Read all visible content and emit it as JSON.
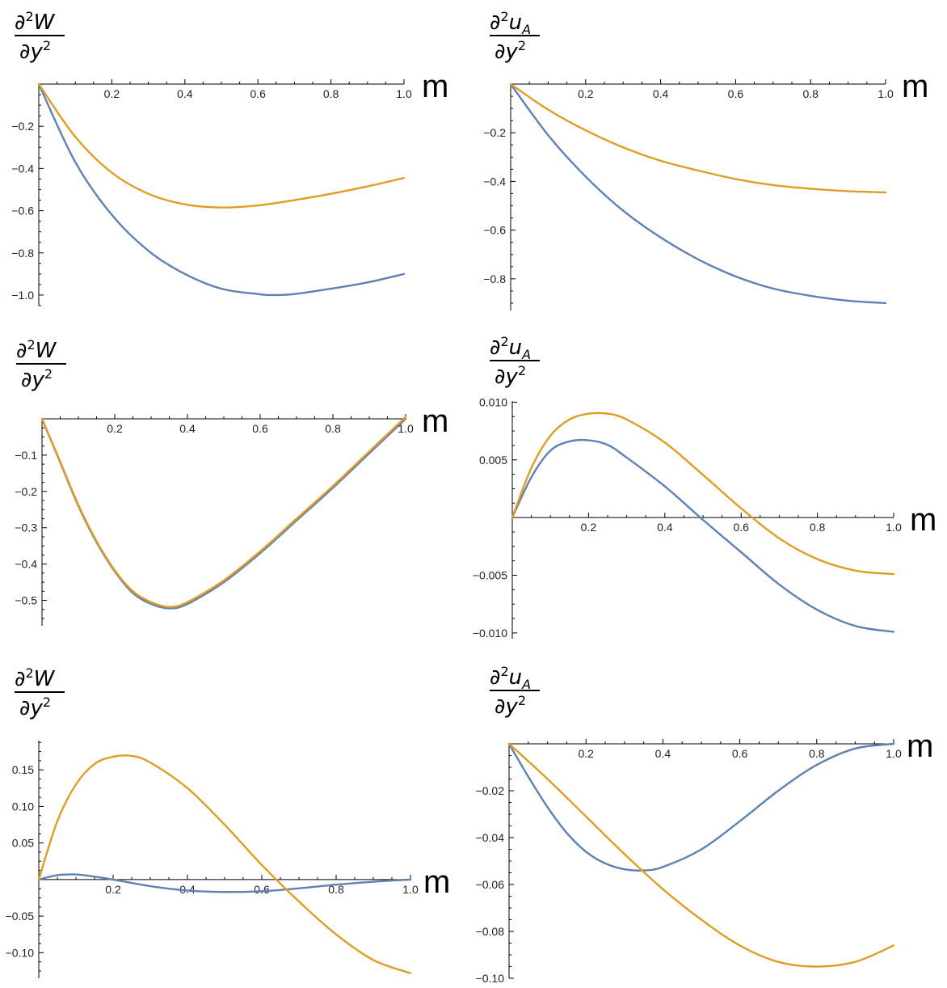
{
  "colors": {
    "series1": "#5e81b5",
    "series2": "#e19c24",
    "axis": "#000000"
  },
  "chart_data": [
    {
      "type": "line",
      "ylabel": {
        "numerator": "∂",
        "sup": "2",
        "var": "W",
        "sub": "",
        "denominator": "∂y",
        "den_sup": "2"
      },
      "xlabel": "m",
      "xlim": [
        0,
        1
      ],
      "ylim": [
        -1.05,
        0
      ],
      "x_ticks": [
        "0.2",
        "0.4",
        "0.6",
        "0.8",
        "1.0"
      ],
      "y_ticks": [
        "-0.2",
        "-0.4",
        "-0.6",
        "-0.8",
        "-1.0"
      ],
      "x_tick_values": [
        0.2,
        0.4,
        0.6,
        0.8,
        1.0
      ],
      "y_tick_values": [
        -0.2,
        -0.4,
        -0.6,
        -0.8,
        -1.0
      ],
      "series": [
        {
          "color": "series1",
          "x": [
            0,
            0.1,
            0.2,
            0.3,
            0.4,
            0.5,
            0.6,
            0.64,
            0.7,
            0.8,
            0.9,
            1.0
          ],
          "y": [
            0,
            -0.37,
            -0.62,
            -0.79,
            -0.9,
            -0.97,
            -0.995,
            -1.0,
            -0.995,
            -0.97,
            -0.94,
            -0.9
          ]
        },
        {
          "color": "series2",
          "x": [
            0,
            0.1,
            0.2,
            0.3,
            0.4,
            0.5,
            0.6,
            0.7,
            0.8,
            0.9,
            1.0
          ],
          "y": [
            0,
            -0.25,
            -0.42,
            -0.52,
            -0.57,
            -0.585,
            -0.575,
            -0.55,
            -0.52,
            -0.485,
            -0.445
          ]
        }
      ]
    },
    {
      "type": "line",
      "ylabel": {
        "numerator": "∂",
        "sup": "2",
        "var": "u",
        "sub": "A",
        "denominator": "∂y",
        "den_sup": "2"
      },
      "xlabel": "m",
      "xlim": [
        0,
        1
      ],
      "ylim": [
        -0.93,
        0
      ],
      "x_ticks": [
        "0.2",
        "0.4",
        "0.6",
        "0.8",
        "1.0"
      ],
      "y_ticks": [
        "-0.2",
        "-0.4",
        "-0.6",
        "-0.8"
      ],
      "x_tick_values": [
        0.2,
        0.4,
        0.6,
        0.8,
        1.0
      ],
      "y_tick_values": [
        -0.2,
        -0.4,
        -0.6,
        -0.8
      ],
      "series": [
        {
          "color": "series1",
          "x": [
            0,
            0.1,
            0.2,
            0.3,
            0.4,
            0.5,
            0.6,
            0.7,
            0.8,
            0.9,
            1.0
          ],
          "y": [
            0,
            -0.21,
            -0.38,
            -0.52,
            -0.63,
            -0.72,
            -0.79,
            -0.84,
            -0.87,
            -0.89,
            -0.9
          ]
        },
        {
          "color": "series2",
          "x": [
            0,
            0.1,
            0.2,
            0.3,
            0.4,
            0.5,
            0.6,
            0.7,
            0.8,
            0.9,
            1.0
          ],
          "y": [
            0,
            -0.105,
            -0.19,
            -0.26,
            -0.315,
            -0.355,
            -0.39,
            -0.415,
            -0.43,
            -0.44,
            -0.445
          ]
        }
      ]
    },
    {
      "type": "line",
      "ylabel": {
        "numerator": "∂",
        "sup": "2",
        "var": "W",
        "sub": "",
        "denominator": "∂y",
        "den_sup": "2"
      },
      "xlabel": "m",
      "xlim": [
        0,
        1
      ],
      "ylim": [
        -0.57,
        0
      ],
      "x_ticks": [
        "0.2",
        "0.4",
        "0.6",
        "0.8",
        "1.0"
      ],
      "y_ticks": [
        "-0.1",
        "-0.2",
        "-0.3",
        "-0.4",
        "-0.5"
      ],
      "x_tick_values": [
        0.2,
        0.4,
        0.6,
        0.8,
        1.0
      ],
      "y_tick_values": [
        -0.1,
        -0.2,
        -0.3,
        -0.4,
        -0.5
      ],
      "series": [
        {
          "color": "series1",
          "x": [
            0,
            0.05,
            0.1,
            0.15,
            0.2,
            0.25,
            0.3,
            0.35,
            0.4,
            0.5,
            0.6,
            0.7,
            0.8,
            0.9,
            1.0
          ],
          "y": [
            0,
            -0.12,
            -0.24,
            -0.34,
            -0.42,
            -0.48,
            -0.51,
            -0.522,
            -0.51,
            -0.45,
            -0.37,
            -0.28,
            -0.19,
            -0.095,
            0.0
          ]
        },
        {
          "color": "series2",
          "x": [
            0,
            0.05,
            0.1,
            0.15,
            0.2,
            0.25,
            0.3,
            0.35,
            0.4,
            0.5,
            0.6,
            0.7,
            0.8,
            0.9,
            1.0
          ],
          "y": [
            0,
            -0.118,
            -0.237,
            -0.337,
            -0.417,
            -0.475,
            -0.505,
            -0.518,
            -0.505,
            -0.445,
            -0.365,
            -0.275,
            -0.185,
            -0.09,
            0.005
          ]
        }
      ]
    },
    {
      "type": "line",
      "ylabel": {
        "numerator": "∂",
        "sup": "2",
        "var": "u",
        "sub": "A",
        "denominator": "∂y",
        "den_sup": "2"
      },
      "xlabel": "m",
      "xlim": [
        0,
        1
      ],
      "ylim": [
        -0.0105,
        0.0101
      ],
      "x_ticks": [
        "0.2",
        "0.4",
        "0.6",
        "0.8",
        "1.0"
      ],
      "y_ticks": [
        "0.010",
        "0.005",
        "-0.005",
        "-0.010"
      ],
      "x_tick_values": [
        0.2,
        0.4,
        0.6,
        0.8,
        1.0
      ],
      "y_tick_values": [
        0.01,
        0.005,
        -0.005,
        -0.01
      ],
      "series": [
        {
          "color": "series1",
          "x": [
            0,
            0.05,
            0.1,
            0.15,
            0.2,
            0.25,
            0.3,
            0.4,
            0.5,
            0.6,
            0.7,
            0.8,
            0.9,
            1.0
          ],
          "y": [
            0,
            0.0035,
            0.0058,
            0.0066,
            0.0067,
            0.0063,
            0.0052,
            0.0027,
            -0.0002,
            -0.003,
            -0.0058,
            -0.008,
            -0.0094,
            -0.0099
          ]
        },
        {
          "color": "series2",
          "x": [
            0,
            0.05,
            0.1,
            0.15,
            0.2,
            0.25,
            0.3,
            0.4,
            0.5,
            0.6,
            0.7,
            0.8,
            0.9,
            1.0
          ],
          "y": [
            0,
            0.0043,
            0.0071,
            0.0085,
            0.009,
            0.009,
            0.0085,
            0.0065,
            0.0037,
            0.0008,
            -0.0018,
            -0.0036,
            -0.0046,
            -0.0049
          ]
        }
      ]
    },
    {
      "type": "line",
      "ylabel": {
        "numerator": "∂",
        "sup": "2",
        "var": "W",
        "sub": "",
        "denominator": "∂y",
        "den_sup": "2"
      },
      "xlabel": "m",
      "xlim": [
        0,
        1
      ],
      "ylim": [
        -0.135,
        0.19
      ],
      "x_ticks": [
        "0.2",
        "0.4",
        "0.6",
        "0.8",
        "1.0"
      ],
      "y_ticks": [
        "0.15",
        "0.10",
        "0.05",
        "-0.05",
        "-0.10"
      ],
      "x_tick_values": [
        0.2,
        0.4,
        0.6,
        0.8,
        1.0
      ],
      "y_tick_values": [
        0.15,
        0.1,
        0.05,
        -0.05,
        -0.1
      ],
      "series": [
        {
          "color": "series1",
          "x": [
            0,
            0.05,
            0.1,
            0.15,
            0.2,
            0.3,
            0.4,
            0.5,
            0.6,
            0.7,
            0.8,
            0.9,
            1.0
          ],
          "y": [
            0,
            0.006,
            0.007,
            0.004,
            0.0,
            -0.009,
            -0.015,
            -0.017,
            -0.016,
            -0.012,
            -0.007,
            -0.003,
            0.0
          ]
        },
        {
          "color": "series2",
          "x": [
            0,
            0.05,
            0.1,
            0.15,
            0.2,
            0.25,
            0.3,
            0.4,
            0.5,
            0.6,
            0.7,
            0.8,
            0.9,
            1.0
          ],
          "y": [
            0,
            0.08,
            0.13,
            0.158,
            0.168,
            0.169,
            0.16,
            0.125,
            0.075,
            0.02,
            -0.03,
            -0.075,
            -0.11,
            -0.128
          ]
        }
      ]
    },
    {
      "type": "line",
      "ylabel": {
        "numerator": "∂",
        "sup": "2",
        "var": "u",
        "sub": "A",
        "denominator": "∂y",
        "den_sup": "2"
      },
      "xlabel": "m",
      "xlim": [
        0,
        1
      ],
      "ylim": [
        -0.1,
        0
      ],
      "x_ticks": [
        "0.2",
        "0.4",
        "0.6",
        "0.8",
        "1.0"
      ],
      "y_ticks": [
        "-0.02",
        "-0.04",
        "-0.06",
        "-0.08",
        "-0.10"
      ],
      "x_tick_values": [
        0.2,
        0.4,
        0.6,
        0.8,
        1.0
      ],
      "y_tick_values": [
        -0.02,
        -0.04,
        -0.06,
        -0.08,
        -0.1
      ],
      "series": [
        {
          "color": "series1",
          "x": [
            0,
            0.05,
            0.1,
            0.15,
            0.2,
            0.25,
            0.3,
            0.35,
            0.4,
            0.5,
            0.6,
            0.7,
            0.8,
            0.9,
            1.0
          ],
          "y": [
            0,
            -0.014,
            -0.027,
            -0.038,
            -0.046,
            -0.051,
            -0.0535,
            -0.054,
            -0.0525,
            -0.045,
            -0.033,
            -0.02,
            -0.009,
            -0.002,
            0.0
          ]
        },
        {
          "color": "series2",
          "x": [
            0,
            0.1,
            0.2,
            0.3,
            0.4,
            0.5,
            0.6,
            0.7,
            0.8,
            0.9,
            1.0
          ],
          "y": [
            0,
            -0.015,
            -0.031,
            -0.047,
            -0.062,
            -0.075,
            -0.086,
            -0.093,
            -0.095,
            -0.093,
            -0.086
          ]
        }
      ]
    }
  ]
}
